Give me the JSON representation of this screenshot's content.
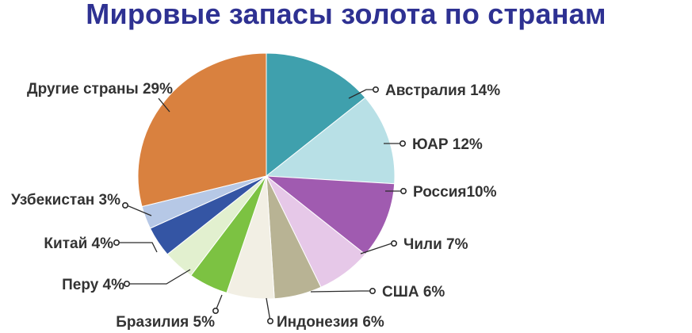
{
  "chart_data": {
    "type": "pie",
    "title": "Мировые запасы золота по странам",
    "slices": [
      {
        "label": "Австралия 14%",
        "value": 14,
        "color": "#3fa0ad"
      },
      {
        "label": "ЮАР 12%",
        "value": 12,
        "color": "#b8e0e6"
      },
      {
        "label": "Россия10%",
        "value": 10,
        "color": "#a05bb0"
      },
      {
        "label": "Чили 7%",
        "value": 7,
        "color": "#e6c8e8"
      },
      {
        "label": "США 6%",
        "value": 6,
        "color": "#b8b394"
      },
      {
        "label": "Индонезия 6%",
        "value": 6,
        "color": "#f2efe4"
      },
      {
        "label": "Бразилия 5%",
        "value": 5,
        "color": "#7cc242"
      },
      {
        "label": "Перу 4%",
        "value": 4,
        "color": "#e2f0cf"
      },
      {
        "label": "Китай 4%",
        "value": 4,
        "color": "#3455a4"
      },
      {
        "label": "Узбекистан 3%",
        "value": 3,
        "color": "#b6c8e6"
      },
      {
        "label": "Другие страны 29%",
        "value": 29,
        "color": "#d9813f"
      }
    ]
  }
}
